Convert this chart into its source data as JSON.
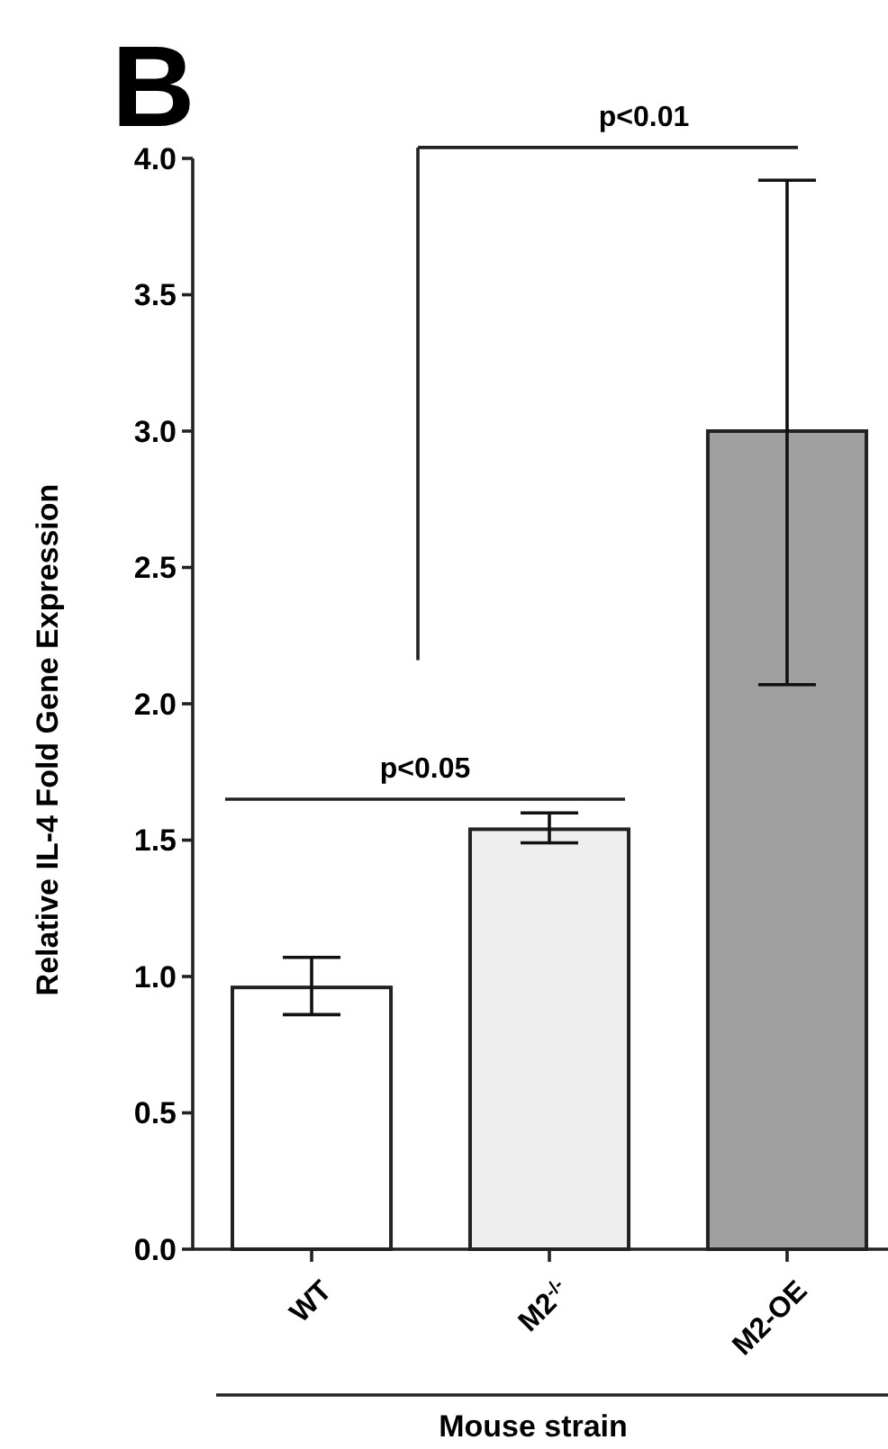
{
  "chart_data": {
    "type": "bar",
    "title": "B",
    "xlabel": "Mouse strain",
    "ylabel": "Relative IL-4 Fold Gene Expression",
    "categories": [
      "WT",
      "M2$^{-/-}$",
      "M2-OE"
    ],
    "values": [
      0.96,
      1.54,
      3.0
    ],
    "colors": [
      "#ffffff",
      "#eeeeee",
      "#a0a0a0"
    ],
    "errors": [
      [
        0.86,
        1.07
      ],
      [
        1.49,
        1.6
      ],
      [
        2.07,
        3.92
      ]
    ],
    "ylim": [
      0,
      4
    ],
    "yticks": [
      {
        "value": 0,
        "label": "0.0"
      },
      {
        "value": 0.5,
        "label": "0.5"
      },
      {
        "value": 1,
        "label": "1.0"
      },
      {
        "value": 1.5,
        "label": "1.5"
      },
      {
        "value": 2,
        "label": "2.0"
      },
      {
        "value": 2.5,
        "label": "2.5"
      },
      {
        "value": 3,
        "label": "3.0"
      },
      {
        "value": 3.5,
        "label": "3.5"
      },
      {
        "value": 4,
        "label": "4.0"
      }
    ],
    "annotations": [
      "p<0.05",
      "p<0.01"
    ]
  }
}
